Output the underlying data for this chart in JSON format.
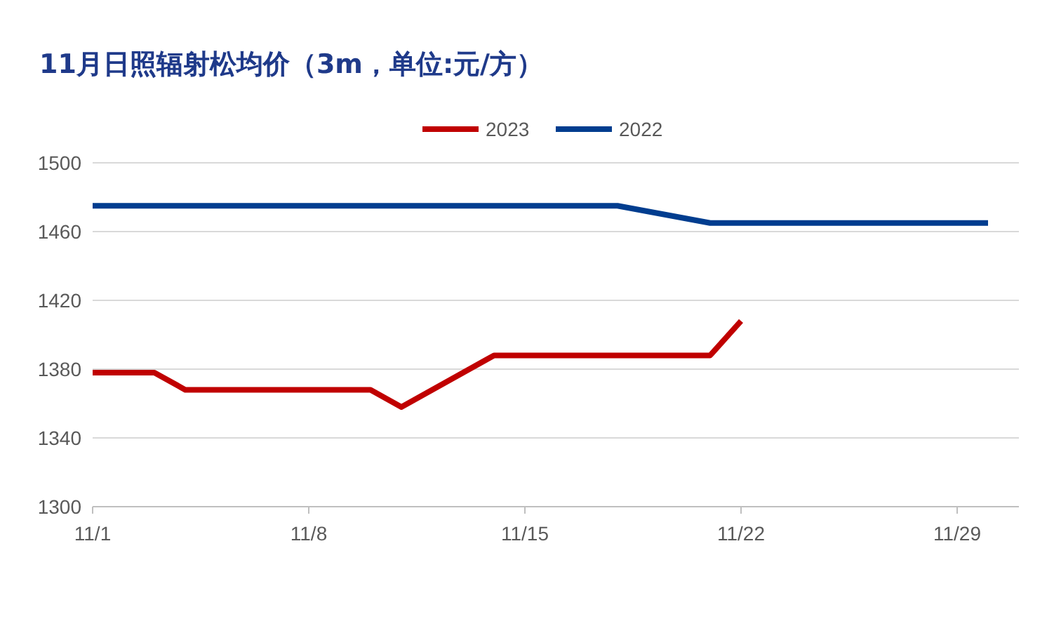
{
  "chart_data": {
    "type": "line",
    "title": "11月日照辐射松均价（3m，单位:元/方）",
    "series": [
      {
        "name": "2023",
        "color": "#c00000",
        "x": [
          "--11-01",
          "--11-03",
          "--11-04",
          "--11-10",
          "--11-11",
          "--11-14",
          "--11-21",
          "--11-22"
        ],
        "values": [
          1378,
          1378,
          1368,
          1368,
          1358,
          1388,
          1388,
          1408
        ]
      },
      {
        "name": "2022",
        "color": "#003d8f",
        "x": [
          "--11-01",
          "--11-18",
          "--11-21",
          "--11-30"
        ],
        "values": [
          1475,
          1475,
          1465,
          1465
        ]
      }
    ],
    "xlim": [
      "--11-01",
      "--12-01"
    ],
    "xticks": [
      {
        "value": "--11-01",
        "label": "11/1"
      },
      {
        "value": "--11-08",
        "label": "11/8"
      },
      {
        "value": "--11-15",
        "label": "11/15"
      },
      {
        "value": "--11-22",
        "label": "11/22"
      },
      {
        "value": "--11-29",
        "label": "11/29"
      }
    ],
    "ylim": [
      1300,
      1500
    ],
    "yticks": [
      1300,
      1340,
      1380,
      1420,
      1460,
      1500
    ],
    "grid": "y",
    "legend": "top",
    "line_style": "solid",
    "marker": "none"
  }
}
